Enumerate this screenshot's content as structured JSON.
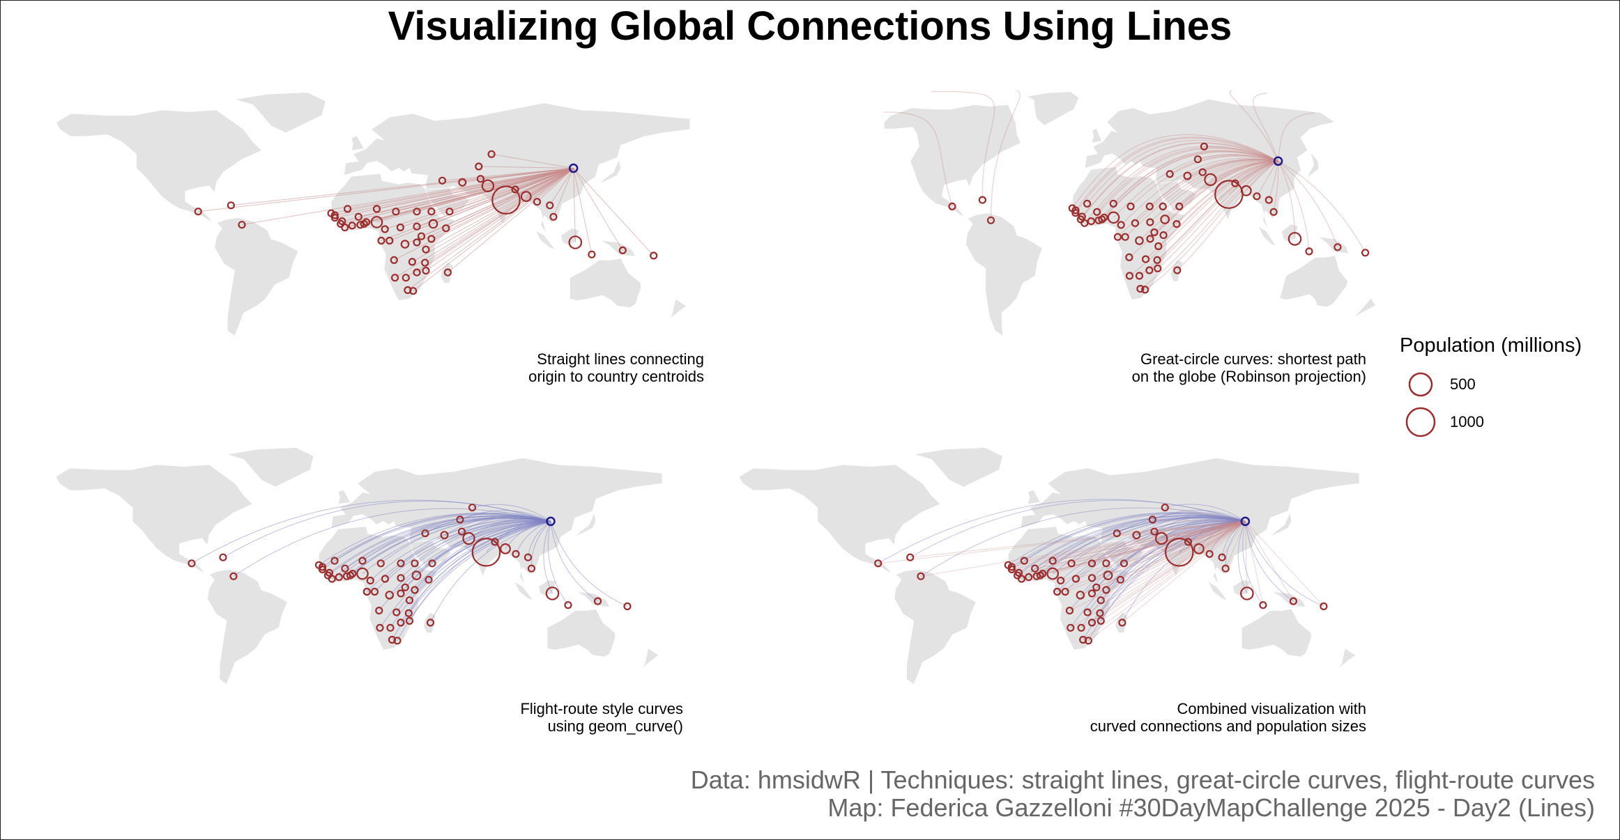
{
  "title": "Visualizing Global Connections Using Lines",
  "panels": [
    {
      "id": "straight",
      "line_style": "straight",
      "caption_line1": "Straight lines connecting",
      "caption_line2": "origin to country centroids"
    },
    {
      "id": "greatcircle",
      "line_style": "greatcircle",
      "caption_line1": "Great-circle curves: shortest path",
      "caption_line2": "on the globe (Robinson projection)"
    },
    {
      "id": "flight",
      "line_style": "flight",
      "caption_line1": "Flight-route style curves",
      "caption_line2": "using geom_curve()"
    },
    {
      "id": "combined",
      "line_style": "combined",
      "caption_line1": "Combined visualization with",
      "caption_line2": "curved connections and population sizes"
    }
  ],
  "legend": {
    "title": "Population (millions)",
    "items": [
      {
        "label": "500",
        "value": 500
      },
      {
        "label": "1000",
        "value": 1000
      }
    ]
  },
  "credits": {
    "line1": "Data: hmsidwR | Techniques: straight lines, great-circle curves, flight-route curves",
    "line2": "Map: Federica Gazzelloni #30DayMapChallenge 2025 - Day2 (Lines)"
  },
  "colors": {
    "land": "#e3e3e3",
    "point": "#9b2d2d",
    "straight_line": "#c98a8a",
    "flight_line": "#7b7fc4",
    "origin": "#1a1a8c",
    "credits": "#666666"
  },
  "origin": {
    "lon": 116,
    "lat": 40
  },
  "destinations": [
    {
      "lon": -90,
      "lat": 15.5,
      "pop": 18
    },
    {
      "lon": -72,
      "lat": 19,
      "pop": 11
    },
    {
      "lon": -66,
      "lat": 8,
      "pop": 28
    },
    {
      "lon": -17,
      "lat": 14.5,
      "pop": 17
    },
    {
      "lon": -15,
      "lat": 13.4,
      "pop": 2
    },
    {
      "lon": -15,
      "lat": 12,
      "pop": 2
    },
    {
      "lon": -11,
      "lat": 10,
      "pop": 13
    },
    {
      "lon": -11.8,
      "lat": 8.5,
      "pop": 8
    },
    {
      "lon": -9.5,
      "lat": 6.5,
      "pop": 5
    },
    {
      "lon": -8,
      "lat": 17,
      "pop": 4
    },
    {
      "lon": -5.5,
      "lat": 7.5,
      "pop": 27
    },
    {
      "lon": -2,
      "lat": 12.5,
      "pop": 22
    },
    {
      "lon": -1,
      "lat": 8,
      "pop": 33
    },
    {
      "lon": 1,
      "lat": 8.5,
      "pop": 9
    },
    {
      "lon": 2.3,
      "lat": 9.5,
      "pop": 13
    },
    {
      "lon": 8,
      "lat": 17,
      "pop": 26
    },
    {
      "lon": 8,
      "lat": 9.5,
      "pop": 220
    },
    {
      "lon": 12.5,
      "lat": 5.5,
      "pop": 28
    },
    {
      "lon": 18.5,
      "lat": 15.5,
      "pop": 18
    },
    {
      "lon": 21,
      "lat": 6.5,
      "pop": 5
    },
    {
      "lon": 10.5,
      "lat": -1,
      "pop": 2
    },
    {
      "lon": 15,
      "lat": -1,
      "pop": 6
    },
    {
      "lon": 23.5,
      "lat": -3,
      "pop": 100
    },
    {
      "lon": 30,
      "lat": 15.5,
      "pop": 47
    },
    {
      "lon": 30,
      "lat": 7,
      "pop": 11
    },
    {
      "lon": 39,
      "lat": 8.5,
      "pop": 126
    },
    {
      "lon": 38,
      "lat": 15.5,
      "pop": 4
    },
    {
      "lon": 46,
      "lat": 6,
      "pop": 17
    },
    {
      "lon": 38,
      "lat": 0,
      "pop": 55
    },
    {
      "lon": 32.5,
      "lat": 1.5,
      "pop": 48
    },
    {
      "lon": 30,
      "lat": -2,
      "pop": 14
    },
    {
      "lon": 35,
      "lat": -6,
      "pop": 65
    },
    {
      "lon": 17.5,
      "lat": -12,
      "pop": 36
    },
    {
      "lon": 27.5,
      "lat": -13,
      "pop": 20
    },
    {
      "lon": 34.5,
      "lat": -13.5,
      "pop": 21
    },
    {
      "lon": 35,
      "lat": -18,
      "pop": 33
    },
    {
      "lon": 30,
      "lat": -19,
      "pop": 16
    },
    {
      "lon": 47,
      "lat": -19,
      "pop": 30
    },
    {
      "lon": 18,
      "lat": -22,
      "pop": 3
    },
    {
      "lon": 24,
      "lat": -22,
      "pop": 3
    },
    {
      "lon": 25,
      "lat": -29,
      "pop": 60
    },
    {
      "lon": 28,
      "lat": -29.5,
      "pop": 2
    },
    {
      "lon": 48,
      "lat": 15.5,
      "pop": 34
    },
    {
      "lon": 65,
      "lat": 34,
      "pop": 41
    },
    {
      "lon": 69,
      "lat": 30,
      "pop": 240
    },
    {
      "lon": 79,
      "lat": 22,
      "pop": 1430
    },
    {
      "lon": 90,
      "lat": 24,
      "pop": 173
    },
    {
      "lon": 84,
      "lat": 28,
      "pop": 31
    },
    {
      "lon": 96,
      "lat": 21,
      "pop": 54
    },
    {
      "lon": 103,
      "lat": 19,
      "pop": 8
    },
    {
      "lon": 105,
      "lat": 12.5,
      "pop": 17
    },
    {
      "lon": 117,
      "lat": -2,
      "pop": 278
    },
    {
      "lon": 126,
      "lat": -8.8,
      "pop": 1.3
    },
    {
      "lon": 143,
      "lat": -6.5,
      "pop": 10
    },
    {
      "lon": 160,
      "lat": -9.5,
      "pop": 0.7
    },
    {
      "lon": 71,
      "lat": 48,
      "pop": 20
    },
    {
      "lon": 64,
      "lat": 41,
      "pop": 35
    },
    {
      "lon": 55,
      "lat": 32,
      "pop": 89
    },
    {
      "lon": 44,
      "lat": 33,
      "pop": 45
    }
  ]
}
